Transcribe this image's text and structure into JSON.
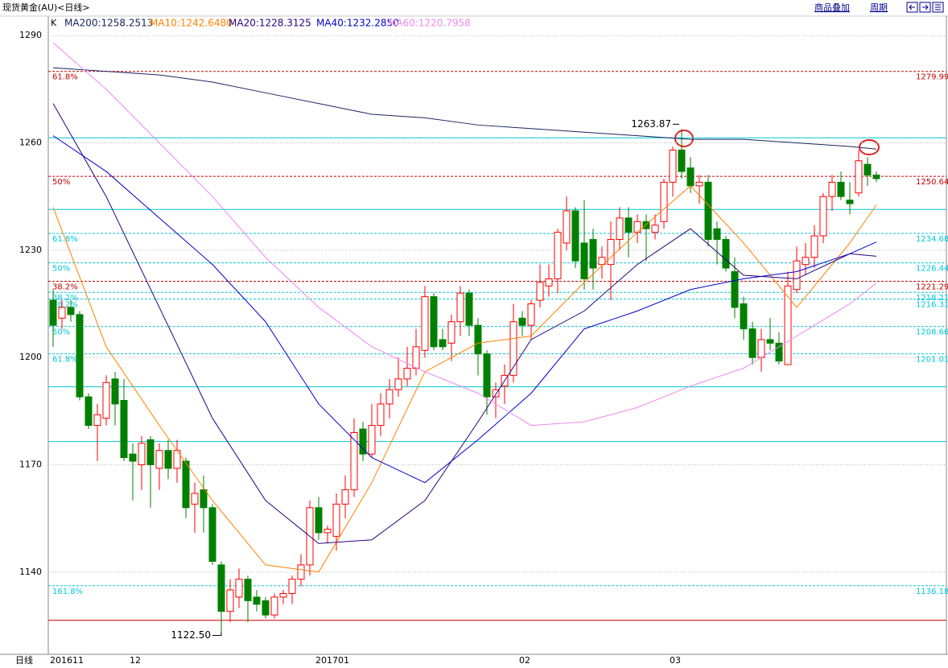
{
  "header": {
    "title": "现货黄金(AU)<日线>",
    "links": [
      "商品叠加",
      "周期"
    ],
    "bottom_label": "日线"
  },
  "chart_data": {
    "type": "candlestick",
    "kind_label": "K",
    "ylim": [
      1117,
      1295
    ],
    "yticks": [
      1290,
      1260,
      1230,
      1200,
      1170,
      1140
    ],
    "grid": true,
    "up_color": "#ff0000",
    "down_color": "#008000",
    "categories": [
      "201611",
      null,
      null,
      null,
      null,
      null,
      null,
      null,
      null,
      "12",
      null,
      null,
      null,
      null,
      null,
      null,
      null,
      null,
      null,
      null,
      null,
      null,
      null,
      null,
      null,
      null,
      null,
      null,
      null,
      null,
      "201701",
      null,
      null,
      null,
      null,
      null,
      null,
      null,
      null,
      null,
      null,
      null,
      null,
      null,
      null,
      null,
      null,
      null,
      null,
      null,
      null,
      null,
      null,
      "02",
      null,
      null,
      null,
      null,
      null,
      null,
      null,
      null,
      null,
      null,
      null,
      null,
      null,
      null,
      null,
      null,
      "03",
      null,
      null,
      null,
      null,
      null,
      null,
      null,
      null,
      null,
      null,
      null,
      null,
      null,
      null,
      null,
      null,
      null,
      null,
      null
    ],
    "ohlc": [
      [
        1216,
        1219,
        1203,
        1209
      ],
      [
        1211,
        1216,
        1208,
        1214
      ],
      [
        1214,
        1216,
        1210,
        1212
      ],
      [
        1212,
        1213,
        1188,
        1189
      ],
      [
        1189,
        1190,
        1180,
        1181
      ],
      [
        1181,
        1187,
        1171,
        1184
      ],
      [
        1183,
        1195,
        1181,
        1193
      ],
      [
        1194,
        1196,
        1181,
        1187
      ],
      [
        1188,
        1194,
        1171,
        1172
      ],
      [
        1173,
        1176,
        1160,
        1171
      ],
      [
        1170,
        1178,
        1163,
        1176
      ],
      [
        1177,
        1178,
        1158,
        1170
      ],
      [
        1169,
        1176,
        1163,
        1174
      ],
      [
        1174,
        1177,
        1166,
        1169
      ],
      [
        1169,
        1177,
        1165,
        1174
      ],
      [
        1171,
        1172,
        1155,
        1158
      ],
      [
        1159,
        1165,
        1151,
        1162
      ],
      [
        1163,
        1167,
        1151,
        1158
      ],
      [
        1158,
        1159,
        1142,
        1143
      ],
      [
        1142,
        1143,
        1122.5,
        1129
      ],
      [
        1129,
        1138,
        1126,
        1135
      ],
      [
        1133,
        1141,
        1130,
        1138
      ],
      [
        1138,
        1139,
        1126,
        1132
      ],
      [
        1133,
        1135,
        1129,
        1131
      ],
      [
        1132,
        1133,
        1127,
        1128
      ],
      [
        1128,
        1134,
        1127,
        1133
      ],
      [
        1133,
        1135,
        1131,
        1134
      ],
      [
        1134,
        1139,
        1131,
        1138
      ],
      [
        1138,
        1145,
        1136,
        1142
      ],
      [
        1142,
        1160,
        1139,
        1158
      ],
      [
        1158,
        1161,
        1149,
        1151
      ],
      [
        1151,
        1153,
        1148,
        1152
      ],
      [
        1150,
        1162,
        1146,
        1159
      ],
      [
        1159,
        1167,
        1155,
        1163
      ],
      [
        1163,
        1183,
        1161,
        1179
      ],
      [
        1180,
        1182,
        1171,
        1173
      ],
      [
        1173,
        1187,
        1172,
        1181
      ],
      [
        1181,
        1190,
        1178,
        1187
      ],
      [
        1187,
        1194,
        1183,
        1191
      ],
      [
        1191,
        1200,
        1189,
        1194
      ],
      [
        1194,
        1203,
        1192,
        1197
      ],
      [
        1197,
        1208,
        1195,
        1203
      ],
      [
        1202,
        1220,
        1200,
        1217
      ],
      [
        1217,
        1218,
        1202,
        1203
      ],
      [
        1205,
        1208,
        1202,
        1203
      ],
      [
        1204,
        1212,
        1199,
        1210
      ],
      [
        1210,
        1220,
        1206,
        1218
      ],
      [
        1218,
        1219,
        1206,
        1209
      ],
      [
        1209,
        1211,
        1195,
        1201
      ],
      [
        1201,
        1202,
        1184,
        1189
      ],
      [
        1189,
        1193,
        1183,
        1191
      ],
      [
        1192,
        1198,
        1187,
        1195
      ],
      [
        1195,
        1215,
        1193,
        1210
      ],
      [
        1211,
        1213,
        1206,
        1209
      ],
      [
        1209,
        1216,
        1205,
        1215
      ],
      [
        1216,
        1226,
        1214,
        1221
      ],
      [
        1220,
        1226,
        1217,
        1222
      ],
      [
        1222,
        1236,
        1218,
        1235
      ],
      [
        1232,
        1245,
        1230,
        1241
      ],
      [
        1241,
        1242,
        1225,
        1227
      ],
      [
        1232,
        1244,
        1219,
        1222
      ],
      [
        1233,
        1236,
        1219,
        1225
      ],
      [
        1226,
        1231,
        1222,
        1228
      ],
      [
        1226,
        1238,
        1216,
        1233
      ],
      [
        1233,
        1242,
        1230,
        1239
      ],
      [
        1239,
        1242,
        1228,
        1235
      ],
      [
        1235,
        1240,
        1232,
        1238
      ],
      [
        1238,
        1240,
        1227,
        1236
      ],
      [
        1235,
        1240,
        1233,
        1237
      ],
      [
        1238,
        1250,
        1236,
        1249
      ],
      [
        1249,
        1259,
        1245,
        1258
      ],
      [
        1258,
        1263.87,
        1250,
        1252
      ],
      [
        1253,
        1256,
        1246,
        1248
      ],
      [
        1248,
        1251,
        1243,
        1249
      ],
      [
        1249,
        1251,
        1231,
        1233
      ],
      [
        1236,
        1238,
        1226,
        1233
      ],
      [
        1233,
        1234,
        1224,
        1225
      ],
      [
        1224,
        1228,
        1211,
        1214
      ],
      [
        1215,
        1217,
        1205,
        1208
      ],
      [
        1208,
        1210,
        1198,
        1200
      ],
      [
        1200,
        1208,
        1196,
        1205
      ],
      [
        1205,
        1211,
        1202,
        1204
      ],
      [
        1204,
        1207,
        1198,
        1199
      ],
      [
        1198,
        1224,
        1198,
        1220
      ],
      [
        1219,
        1231,
        1218,
        1227
      ],
      [
        1226,
        1232,
        1223,
        1228
      ],
      [
        1228,
        1237,
        1225,
        1234
      ],
      [
        1234,
        1246,
        1232,
        1245
      ],
      [
        1245,
        1251,
        1241,
        1249
      ],
      [
        1249,
        1252,
        1244,
        1245
      ],
      [
        1244,
        1249,
        1240,
        1243
      ],
      [
        1246,
        1258,
        1245,
        1255
      ],
      [
        1254,
        1256,
        1248,
        1251
      ],
      [
        1251,
        1252,
        1249,
        1250
      ]
    ],
    "series": [
      {
        "name": "MA200",
        "label": "MA200:1258.2513",
        "color": "#1a2560",
        "x": [
          0,
          6,
          12,
          18,
          24,
          30,
          36,
          42,
          48,
          54,
          60,
          66,
          72,
          78,
          84,
          90,
          93
        ],
        "values": [
          1281,
          1280,
          1279,
          1277,
          1274,
          1271,
          1268,
          1267,
          1265,
          1264,
          1263,
          1262,
          1261,
          1261,
          1260,
          1259,
          1258.2513
        ]
      },
      {
        "name": "MA10",
        "label": "MA10:1242.6480",
        "color": "#ff8000",
        "x": [
          0,
          6,
          12,
          18,
          24,
          30,
          36,
          42,
          48,
          54,
          60,
          66,
          72,
          78,
          84,
          90,
          93
        ],
        "values": [
          1242,
          1203,
          1181,
          1160,
          1142,
          1140,
          1165,
          1196,
          1204,
          1206,
          1221,
          1235,
          1248,
          1232,
          1214,
          1232,
          1242.648
        ]
      },
      {
        "name": "MA20",
        "label": "MA20:1228.3125",
        "color": "#2a0080",
        "x": [
          0,
          6,
          12,
          18,
          24,
          30,
          36,
          42,
          48,
          54,
          60,
          66,
          72,
          78,
          84,
          90,
          93
        ],
        "values": [
          1271,
          1245,
          1214,
          1183,
          1160,
          1148,
          1149,
          1160,
          1182,
          1205,
          1213,
          1226,
          1236,
          1223,
          1222,
          1229,
          1228.3125
        ]
      },
      {
        "name": "MA40",
        "label": "MA40:1232.2850",
        "color": "#0000cc",
        "x": [
          0,
          6,
          12,
          18,
          24,
          30,
          36,
          42,
          48,
          54,
          60,
          66,
          72,
          78,
          84,
          90,
          93
        ],
        "values": [
          1262,
          1252,
          1239,
          1226,
          1210,
          1187,
          1172,
          1165,
          1177,
          1190,
          1208,
          1213,
          1219,
          1222,
          1224,
          1229,
          1232.285
        ]
      },
      {
        "name": "MA60",
        "label": "MA60:1220.7958",
        "color": "#ee88ee",
        "x": [
          0,
          6,
          12,
          18,
          24,
          30,
          36,
          42,
          48,
          54,
          60,
          66,
          72,
          78,
          84,
          90,
          93
        ],
        "values": [
          1288,
          1275,
          1260,
          1245,
          1228,
          1214,
          1203,
          1196,
          1190,
          1181,
          1182,
          1186,
          1192,
          1197,
          1206,
          1215,
          1220.7958
        ]
      }
    ],
    "levels": [
      {
        "value": 1279.99,
        "pct": "61.8%",
        "color": "#c00000"
      },
      {
        "value": 1250.64,
        "pct": "50%",
        "color": "#c00000"
      },
      {
        "value": 1221.29,
        "pct": "38.2%",
        "color": "#c00000"
      },
      {
        "value": 1234.68,
        "pct": "61.8%",
        "color": "#00c8d8"
      },
      {
        "value": 1226.44,
        "pct": "50%",
        "color": "#00c8d8"
      },
      {
        "value": 1218.21,
        "pct": "38.2%",
        "color": "#00c8d8"
      },
      {
        "value": 1216.31,
        "pct": "38.2%",
        "color": "#00c8d8"
      },
      {
        "value": 1208.66,
        "pct": "50%",
        "color": "#00c8d8"
      },
      {
        "value": 1201.01,
        "pct": "61.8%",
        "color": "#00c8d8"
      },
      {
        "value": 1136.18,
        "pct": "161.8%",
        "color": "#00c8d8"
      }
    ],
    "lines": [
      {
        "value": 1261.4,
        "color": "#00c8d8"
      },
      {
        "value": 1241.4,
        "color": "#00c8d8"
      },
      {
        "value": 1191.8,
        "color": "#00c8d8"
      },
      {
        "value": 1176.5,
        "color": "#00c8d8"
      },
      {
        "value": 1126.5,
        "color": "#c00000"
      }
    ],
    "annotations": [
      "1263.87",
      "1122.50"
    ]
  }
}
